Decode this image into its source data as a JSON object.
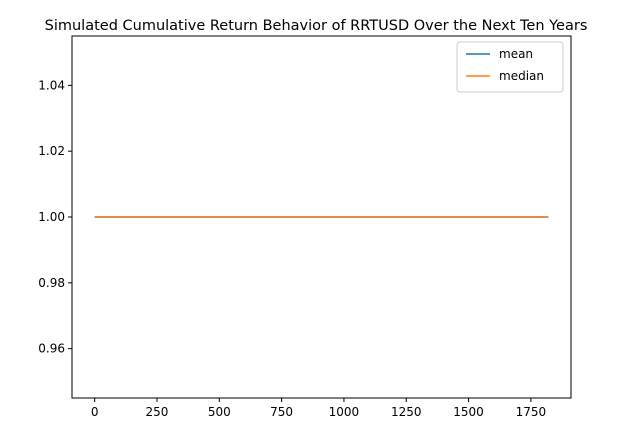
{
  "chart_data": {
    "type": "line",
    "title": "Simulated Cumulative Return Behavior of RRTUSD Over the Next Ten Years",
    "xlabel": "",
    "ylabel": "",
    "xlim": [
      -91,
      1911
    ],
    "ylim": [
      0.945,
      1.055
    ],
    "xticks": [
      0,
      250,
      500,
      750,
      1000,
      1250,
      1500,
      1750
    ],
    "xtick_labels": [
      "0",
      "250",
      "500",
      "750",
      "1000",
      "1250",
      "1500",
      "1750"
    ],
    "yticks": [
      0.96,
      0.98,
      1.0,
      1.02,
      1.04
    ],
    "ytick_labels": [
      "0.96",
      "0.98",
      "1.00",
      "1.02",
      "1.04"
    ],
    "grid": false,
    "legend_position": "top-right",
    "series": [
      {
        "name": "mean",
        "color": "#1f77b4",
        "x": [
          0,
          1820
        ],
        "y": [
          1.0,
          1.0
        ]
      },
      {
        "name": "median",
        "color": "#ff7f0e",
        "x": [
          0,
          1820
        ],
        "y": [
          1.0,
          1.0
        ]
      }
    ]
  }
}
